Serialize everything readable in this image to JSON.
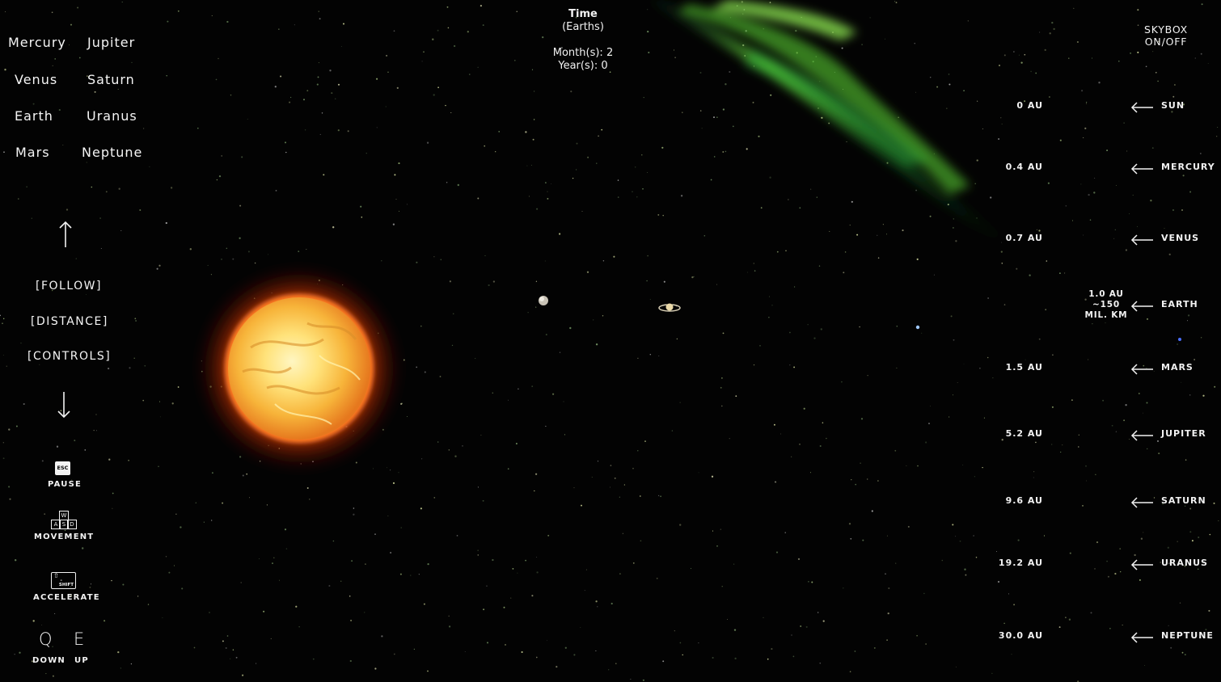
{
  "planet_nav": {
    "left": [
      "Mercury",
      "Venus",
      "Earth",
      "Mars"
    ],
    "right": [
      "Jupiter",
      "Saturn",
      "Uranus",
      "Neptune"
    ]
  },
  "menu": {
    "follow": "[FOLLOW]",
    "distance": "[DISTANCE]",
    "controls": "[CONTROLS]"
  },
  "controls": {
    "pause_key": "ESC",
    "pause_label": "PAUSE",
    "movement_keys": [
      "W",
      "A",
      "S",
      "D"
    ],
    "movement_label": "MOVEMENT",
    "accelerate_key": "SHIFT",
    "accelerate_label": "ACCELERATE",
    "down_key": "Q",
    "down_label": "DOWN",
    "up_key": "E",
    "up_label": "UP"
  },
  "time": {
    "title": "Time",
    "subtitle": "(Earths)",
    "months": "Month(s): 2",
    "years": "Year(s): 0"
  },
  "skybox": {
    "line1": "SKYBOX",
    "line2": "ON/OFF"
  },
  "distances": [
    {
      "au": "0 AU",
      "name": "SUN"
    },
    {
      "au": "0.4 AU",
      "name": "MERCURY"
    },
    {
      "au": "0.7 AU",
      "name": "VENUS"
    },
    {
      "au_lines": [
        "1.0 AU",
        "~150",
        "mil. km"
      ],
      "name": "EARTH"
    },
    {
      "au": "1.5 AU",
      "name": "MARS"
    },
    {
      "au": "5.2 AU",
      "name": "JUPITER"
    },
    {
      "au": "9.6 AU",
      "name": "SATURN"
    },
    {
      "au": "19.2 AU",
      "name": "URANUS"
    },
    {
      "au": "30.0 AU",
      "name": "NEPTUNE"
    }
  ],
  "colors": {
    "background": "#030303",
    "text": "#f2f2f2",
    "sun_core": "#ffe98a",
    "sun_glow": "#ff5a14",
    "aurora": "#3dcc3a"
  },
  "scene_icons": {
    "sun": "sun-sphere",
    "planets": [
      "mercury-planet",
      "saturn-planet",
      "earth-planet",
      "neptune-planet"
    ]
  }
}
